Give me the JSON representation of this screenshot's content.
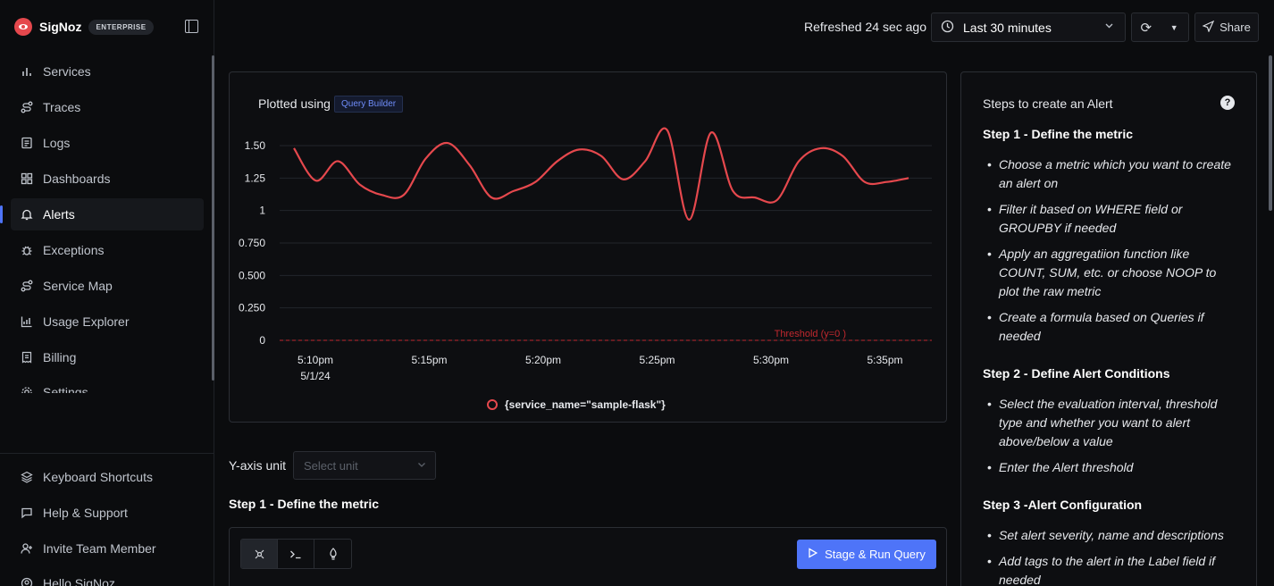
{
  "brand": {
    "name": "SigNoz",
    "badge": "ENTERPRISE"
  },
  "sidebar": {
    "items": [
      {
        "label": "Services",
        "icon": "bar-chart-icon"
      },
      {
        "label": "Traces",
        "icon": "route-icon"
      },
      {
        "label": "Logs",
        "icon": "logs-icon"
      },
      {
        "label": "Dashboards",
        "icon": "grid-icon"
      },
      {
        "label": "Alerts",
        "icon": "bell-icon",
        "active": true
      },
      {
        "label": "Exceptions",
        "icon": "bug-icon"
      },
      {
        "label": "Service Map",
        "icon": "route-icon"
      },
      {
        "label": "Usage Explorer",
        "icon": "chart-icon"
      },
      {
        "label": "Billing",
        "icon": "receipt-icon"
      },
      {
        "label": "Settings",
        "icon": "gear-icon"
      }
    ],
    "bottom": [
      {
        "label": "Keyboard Shortcuts",
        "icon": "layers-icon"
      },
      {
        "label": "Help & Support",
        "icon": "message-icon"
      },
      {
        "label": "Invite Team Member",
        "icon": "user-plus-icon"
      },
      {
        "label": "Hello SigNoz",
        "icon": "user-circle-icon"
      }
    ]
  },
  "topbar": {
    "refreshed": "Refreshed 24 sec ago",
    "time_range": "Last 30 minutes",
    "share": "Share"
  },
  "chart": {
    "plotted_using": "Plotted using",
    "tag": "Query Builder",
    "threshold_label": "Threshold (y=0 )",
    "legend": "{service_name=\"sample-flask\"}"
  },
  "chart_data": {
    "type": "line",
    "yticks": [
      "1.50",
      "1.25",
      "1",
      "0.750",
      "0.500",
      "0.250",
      "0"
    ],
    "ylim": [
      0,
      1.5
    ],
    "xticks": [
      "5:10pm",
      "5:15pm",
      "5:20pm",
      "5:25pm",
      "5:30pm",
      "5:35pm"
    ],
    "xtick_sub": "5/1/24",
    "threshold": 0,
    "color": "#e5484d",
    "series": [
      {
        "name": "{service_name=\"sample-flask\"}",
        "x_minutes": [
          0,
          1,
          2,
          3,
          4,
          5,
          6,
          7,
          8,
          9,
          10,
          11,
          12,
          13,
          14,
          15,
          16,
          17,
          18,
          19,
          20,
          21,
          22,
          23,
          24,
          25,
          26,
          27,
          28
        ],
        "values": [
          1.48,
          1.23,
          1.38,
          1.2,
          1.12,
          1.12,
          1.4,
          1.52,
          1.35,
          1.1,
          1.15,
          1.22,
          1.38,
          1.47,
          1.42,
          1.24,
          1.38,
          1.62,
          0.93,
          1.6,
          1.15,
          1.1,
          1.08,
          1.38,
          1.48,
          1.42,
          1.22,
          1.22,
          1.25
        ]
      }
    ]
  },
  "yunit": {
    "label": "Y-axis unit",
    "placeholder": "Select unit"
  },
  "step1_title": "Step 1 - Define the metric",
  "query": {
    "tabs": [
      "query-builder-icon",
      "terminal-icon",
      "promql-icon"
    ],
    "run_label": "Stage & Run Query"
  },
  "steps": {
    "title": "Steps to create an Alert",
    "sections": [
      {
        "heading": "Step 1 - Define the metric",
        "items": [
          "Choose a metric which you want to create an alert on",
          "Filter it based on WHERE field or GROUPBY if needed",
          "Apply an aggregatiion function like COUNT, SUM, etc. or choose NOOP to plot the raw metric",
          "Create a formula based on Queries if needed"
        ]
      },
      {
        "heading": "Step 2 - Define Alert Conditions",
        "items": [
          "Select the evaluation interval, threshold type and whether you want to alert above/below a value",
          "Enter the Alert threshold"
        ]
      },
      {
        "heading": "Step 3 -Alert Configuration",
        "items": [
          "Set alert severity, name and descriptions",
          "Add tags to the alert in the Label field if needed"
        ]
      }
    ]
  }
}
